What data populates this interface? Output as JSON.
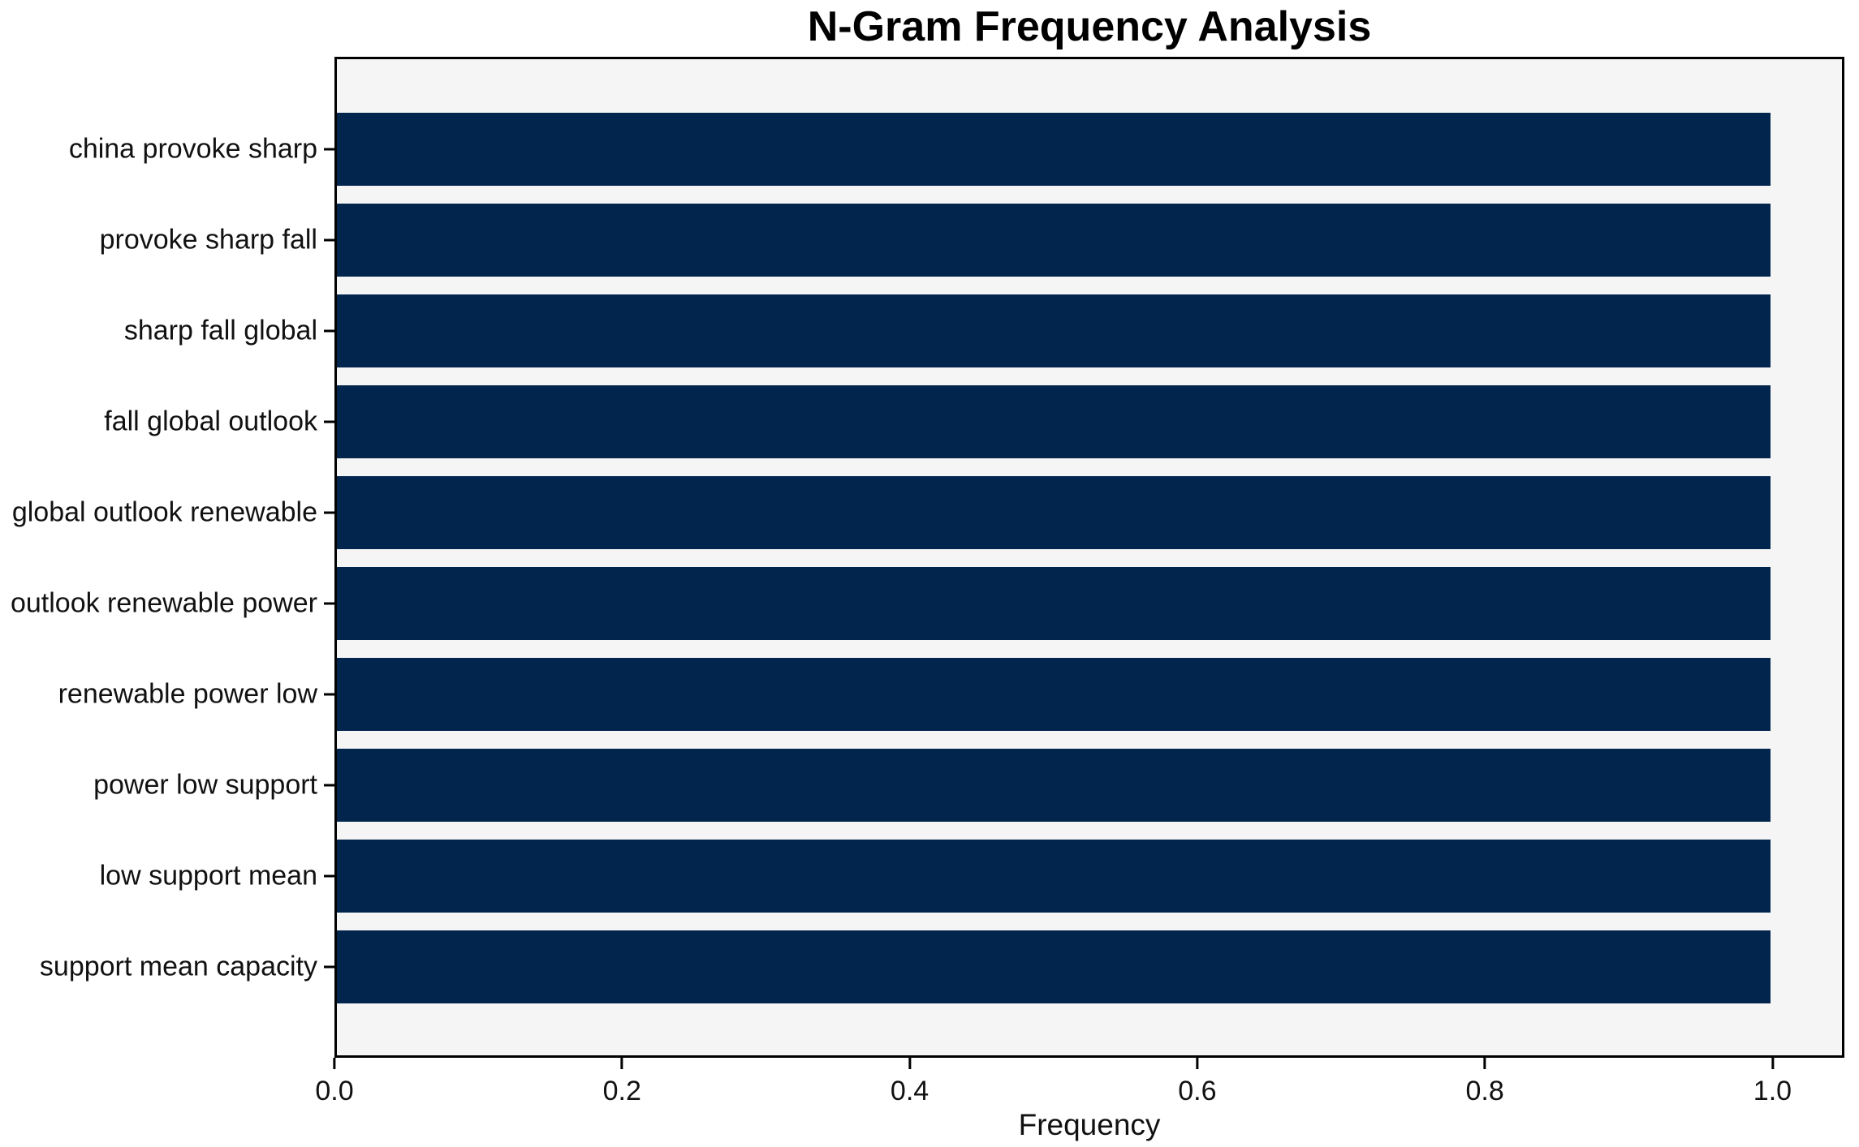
{
  "chart_data": {
    "type": "bar",
    "orientation": "horizontal",
    "title": "N-Gram Frequency Analysis",
    "xlabel": "Frequency",
    "ylabel": "",
    "categories": [
      "china provoke sharp",
      "provoke sharp fall",
      "sharp fall global",
      "fall global outlook",
      "global outlook renewable",
      "outlook renewable power",
      "renewable power low",
      "power low support",
      "low support mean",
      "support mean capacity"
    ],
    "values": [
      1.0,
      1.0,
      1.0,
      1.0,
      1.0,
      1.0,
      1.0,
      1.0,
      1.0,
      1.0
    ],
    "x_ticks": [
      0.0,
      0.2,
      0.4,
      0.6,
      0.8,
      1.0
    ],
    "x_tick_labels": [
      "0.0",
      "0.2",
      "0.4",
      "0.6",
      "0.8",
      "1.0"
    ],
    "xlim": [
      0,
      1.05
    ],
    "grid": false,
    "legend_position": "none",
    "colors": {
      "bar_color": "#02254d",
      "plot_background": "#f5f5f6",
      "figure_background": "#ffffff",
      "spine_color": "#000000",
      "text_color": "#111111"
    }
  }
}
